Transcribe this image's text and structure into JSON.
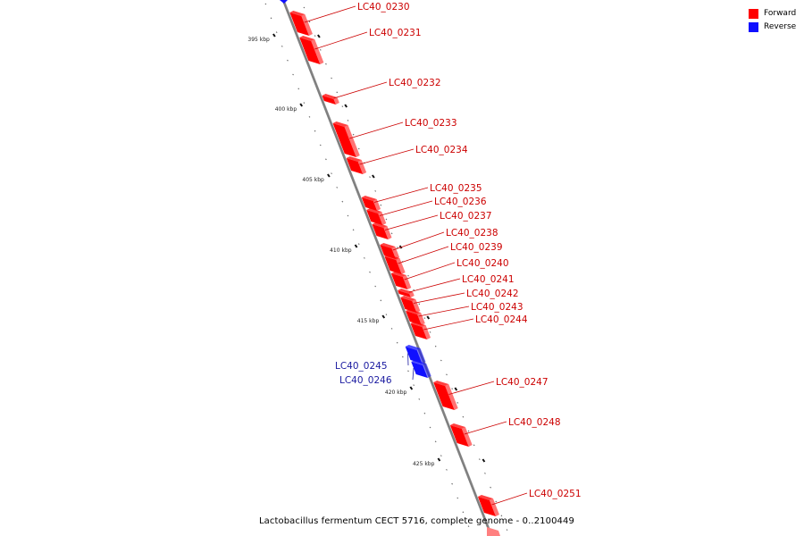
{
  "legend": {
    "forward_label": "Forward",
    "reverse_label": "Reverse",
    "forward_color": "#ff0000",
    "reverse_color": "#1010ff"
  },
  "colors": {
    "forward_text": "#cc0000",
    "reverse_text": "#1a1aa0"
  },
  "caption": "Lactobacillus fermentum CECT 5716, complete genome - 0..2100449",
  "ticks": [
    {
      "kbp": 395,
      "label": "395 kbp"
    },
    {
      "kbp": 400,
      "label": "400 kbp"
    },
    {
      "kbp": 405,
      "label": "405 kbp"
    },
    {
      "kbp": 410,
      "label": "410 kbp"
    },
    {
      "kbp": 415,
      "label": "415 kbp"
    },
    {
      "kbp": 420,
      "label": "420 kbp"
    },
    {
      "kbp": 425,
      "label": "425 kbp"
    }
  ],
  "genes": [
    {
      "id": "LC40_0230",
      "strand": "forward"
    },
    {
      "id": "LC40_0231",
      "strand": "forward"
    },
    {
      "id": "LC40_0232",
      "strand": "forward"
    },
    {
      "id": "LC40_0233",
      "strand": "forward"
    },
    {
      "id": "LC40_0234",
      "strand": "forward"
    },
    {
      "id": "LC40_0235",
      "strand": "forward"
    },
    {
      "id": "LC40_0236",
      "strand": "forward"
    },
    {
      "id": "LC40_0237",
      "strand": "forward"
    },
    {
      "id": "LC40_0238",
      "strand": "forward"
    },
    {
      "id": "LC40_0239",
      "strand": "forward"
    },
    {
      "id": "LC40_0240",
      "strand": "forward"
    },
    {
      "id": "LC40_0241",
      "strand": "forward"
    },
    {
      "id": "LC40_0242",
      "strand": "forward"
    },
    {
      "id": "LC40_0243",
      "strand": "forward"
    },
    {
      "id": "LC40_0244",
      "strand": "forward"
    },
    {
      "id": "LC40_0245",
      "strand": "reverse"
    },
    {
      "id": "LC40_0246",
      "strand": "reverse"
    },
    {
      "id": "LC40_0247",
      "strand": "forward"
    },
    {
      "id": "LC40_0248",
      "strand": "forward"
    },
    {
      "id": "LC40_0251",
      "strand": "forward"
    }
  ]
}
